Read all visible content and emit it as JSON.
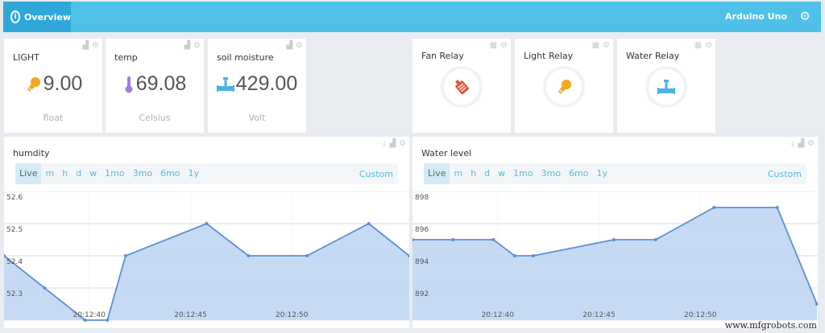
{
  "header": {
    "tab_label": "Overview",
    "device_name": "Arduino Uno",
    "colors": {
      "bar": "#4fc1e9",
      "active_tab": "#2fa8d9"
    }
  },
  "value_widgets": [
    {
      "title": "LIGHT",
      "value": "9.00",
      "unit": "float",
      "icon": "lightbulb-icon",
      "icon_color": "#f5a623"
    },
    {
      "title": "temp",
      "value": "69.08",
      "unit": "Celsius",
      "icon": "thermometer-icon",
      "icon_color": "#a07ee0"
    },
    {
      "title": "soil moisture",
      "value": "429.00",
      "unit": "Volt",
      "icon": "pipe-valve-icon",
      "icon_color": "#4ab3e2"
    }
  ],
  "relay_widgets": [
    {
      "title": "Fan Relay",
      "icon": "fan-icon",
      "icon_color": "#e4543a"
    },
    {
      "title": "Light Relay",
      "icon": "lightbulb-icon",
      "icon_color": "#f5a623"
    },
    {
      "title": "Water Relay",
      "icon": "pipe-valve-icon",
      "icon_color": "#4ab3e2"
    }
  ],
  "ranges": [
    "Live",
    "m",
    "h",
    "d",
    "w",
    "1mo",
    "3mo",
    "6mo",
    "1y"
  ],
  "custom_label": "Custom",
  "charts": [
    {
      "title": "humdity"
    },
    {
      "title": "Water level"
    }
  ],
  "chart_data": [
    {
      "type": "area",
      "title": "humdity",
      "xlabel": "",
      "ylabel": "",
      "x_ticks": [
        "20:12:40",
        "20:12:45",
        "20:12:50"
      ],
      "y_ticks": [
        "52.6",
        "52.5",
        "52.4",
        "52.3"
      ],
      "ylim": [
        52.2,
        52.6
      ],
      "grid": true,
      "series": [
        {
          "name": "humdity",
          "values": [
            52.4,
            52.3,
            52.2,
            52.2,
            52.4,
            52.5,
            52.4,
            52.4,
            52.5,
            52.4
          ]
        }
      ],
      "color": "#5b8fd6",
      "fill": "#c6dbf3"
    },
    {
      "type": "area",
      "title": "Water level",
      "xlabel": "",
      "ylabel": "",
      "x_ticks": [
        "20:12:40",
        "20:12:45",
        "20:12:50"
      ],
      "y_ticks": [
        "898",
        "896",
        "894",
        "892"
      ],
      "ylim": [
        890,
        898
      ],
      "grid": true,
      "series": [
        {
          "name": "Water level",
          "values": [
            895,
            895,
            895,
            894,
            894,
            895,
            895,
            897,
            897,
            891
          ]
        }
      ],
      "color": "#5b8fd6",
      "fill": "#c6dbf3"
    }
  ],
  "watermark": "www.mfgrobots.com"
}
